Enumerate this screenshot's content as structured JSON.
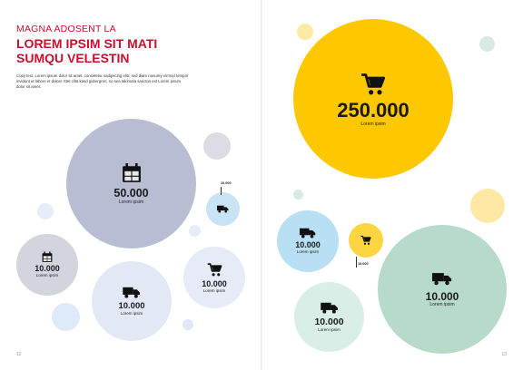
{
  "colors": {
    "accent_red": "#c8102e",
    "slate": "#b8bdd3",
    "light_blue": "#d9eaf7",
    "sky_blue": "#b9dff5",
    "pale_blue": "#e7edf8",
    "yellow": "#fdc800",
    "light_yellow": "#fde9a3",
    "mint": "#b7dacb",
    "pale_mint": "#d9eee6",
    "light_grey": "#dcdde4"
  },
  "left_page": {
    "kicker": "MAGNA ADOSENT LA",
    "heading_line1": "LOREM IPSIM SIT MATI",
    "heading_line2": "SUMQU VELESTIN",
    "intro_text": "Copy text. Lorem ipsum dolor sit amet, consetetur sadipscing elitr, sed diam nonumy eirmod tempor invidunt ut labore et dolore Stet clita kasd gubergren, no sea takimata sanctus est Lorem ipsum dolor sit amet.",
    "page_number": "12",
    "stats": [
      {
        "value": "50.000",
        "label": "Lorem ipsim",
        "icon": "calendar-icon"
      },
      {
        "value": "10.000",
        "label": "Lorem ipsim",
        "icon": "calendar-icon"
      },
      {
        "value": "10.000",
        "label": "Lorem ipsim",
        "icon": "delivery-truck-icon"
      },
      {
        "value": "10.000",
        "label": "Lorem ipsim",
        "icon": "shopping-cart-icon"
      }
    ],
    "small_truck_callout": "10.000",
    "small_truck_icon": "delivery-truck-icon"
  },
  "right_page": {
    "page_number": "13",
    "stats": [
      {
        "value": "250.000",
        "label": "Lorem ipsim",
        "icon": "shopping-cart-icon"
      },
      {
        "value": "10.000",
        "label": "Lorem ipsim",
        "icon": "delivery-truck-icon"
      },
      {
        "value": "10.000",
        "label": "Lorem ipsim",
        "icon": "delivery-truck-icon"
      },
      {
        "value": "10.000",
        "label": "Lorem ipsim",
        "icon": "delivery-truck-icon"
      }
    ],
    "small_cart_callout": "10.000",
    "small_cart_icon": "shopping-cart-icon"
  }
}
